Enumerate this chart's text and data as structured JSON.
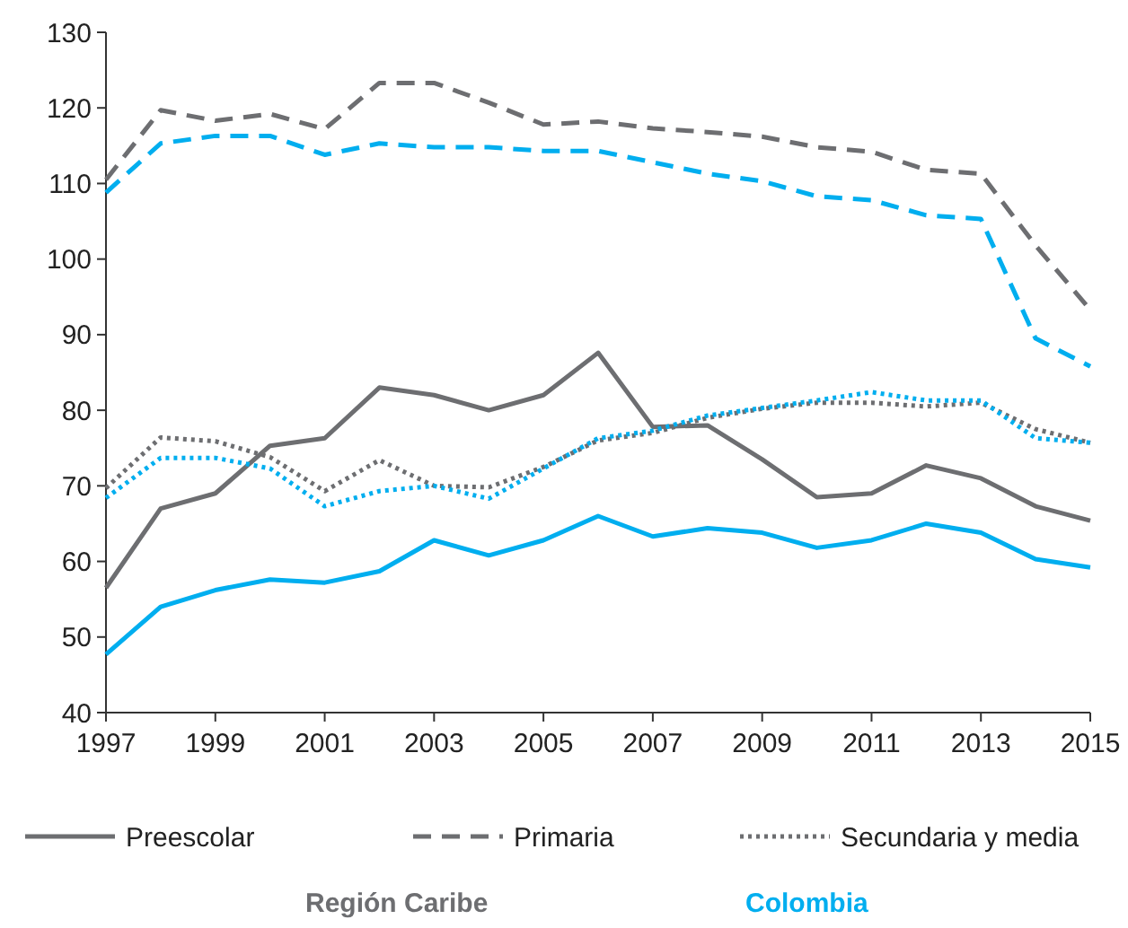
{
  "chart_data": {
    "type": "line",
    "x": [
      1997,
      1998,
      1999,
      2000,
      2001,
      2002,
      2003,
      2004,
      2005,
      2006,
      2007,
      2008,
      2009,
      2010,
      2011,
      2012,
      2013,
      2014,
      2015
    ],
    "xlim": [
      1997,
      2015
    ],
    "xticks": [
      1997,
      1999,
      2001,
      2003,
      2005,
      2007,
      2009,
      2011,
      2013,
      2015
    ],
    "ylim": [
      40,
      130
    ],
    "yticks": [
      40,
      50,
      60,
      70,
      80,
      90,
      100,
      110,
      120,
      130
    ],
    "grid": false,
    "legend": "bottom",
    "series": [
      {
        "name": "Preescolar",
        "color": "#6d6e71",
        "line_style": "solid",
        "values": [
          56.5,
          67,
          69,
          75.3,
          76.3,
          83,
          82,
          80,
          82,
          87.6,
          77.8,
          78,
          73.5,
          68.5,
          69,
          72.7,
          71,
          67.3,
          65.4
        ]
      },
      {
        "name": "Primaria",
        "color": "#6d6e71",
        "line_style": "dashed",
        "values": [
          110.5,
          119.7,
          118.3,
          119.2,
          117.2,
          123.3,
          123.3,
          120.7,
          117.8,
          118.2,
          117.3,
          116.8,
          116.2,
          114.8,
          114.2,
          111.8,
          111.3,
          101.8,
          93.3
        ]
      },
      {
        "name": "Secundaria y media",
        "color": "#6d6e71",
        "line_style": "dotted",
        "values": [
          69.7,
          76.4,
          75.9,
          73.8,
          69.3,
          73.4,
          70,
          69.8,
          72.5,
          76,
          77,
          79,
          80.2,
          81,
          81,
          80.5,
          81,
          77.5,
          75.7
        ]
      },
      {
        "color": "#00aeef",
        "line_style": "solid",
        "values": [
          47.7,
          54,
          56.2,
          57.6,
          57.2,
          58.7,
          62.8,
          60.8,
          62.8,
          66,
          63.3,
          64.4,
          63.8,
          61.8,
          62.8,
          65,
          63.8,
          60.3,
          59.2
        ]
      },
      {
        "color": "#00aeef",
        "line_style": "dashed",
        "values": [
          108.8,
          115.3,
          116.3,
          116.3,
          113.8,
          115.3,
          114.8,
          114.8,
          114.3,
          114.3,
          112.8,
          111.3,
          110.3,
          108.3,
          107.8,
          105.8,
          105.3,
          89.5,
          85.8
        ]
      },
      {
        "color": "#00aeef",
        "line_style": "dotted",
        "values": [
          68.4,
          73.7,
          73.7,
          72.3,
          67.3,
          69.3,
          70,
          68.3,
          72.3,
          76.3,
          77.3,
          79.3,
          80.3,
          81.3,
          82.4,
          81.3,
          81.3,
          76.3,
          75.7
        ]
      }
    ],
    "annotations": [
      "Región Caribe",
      "Colombia"
    ]
  }
}
